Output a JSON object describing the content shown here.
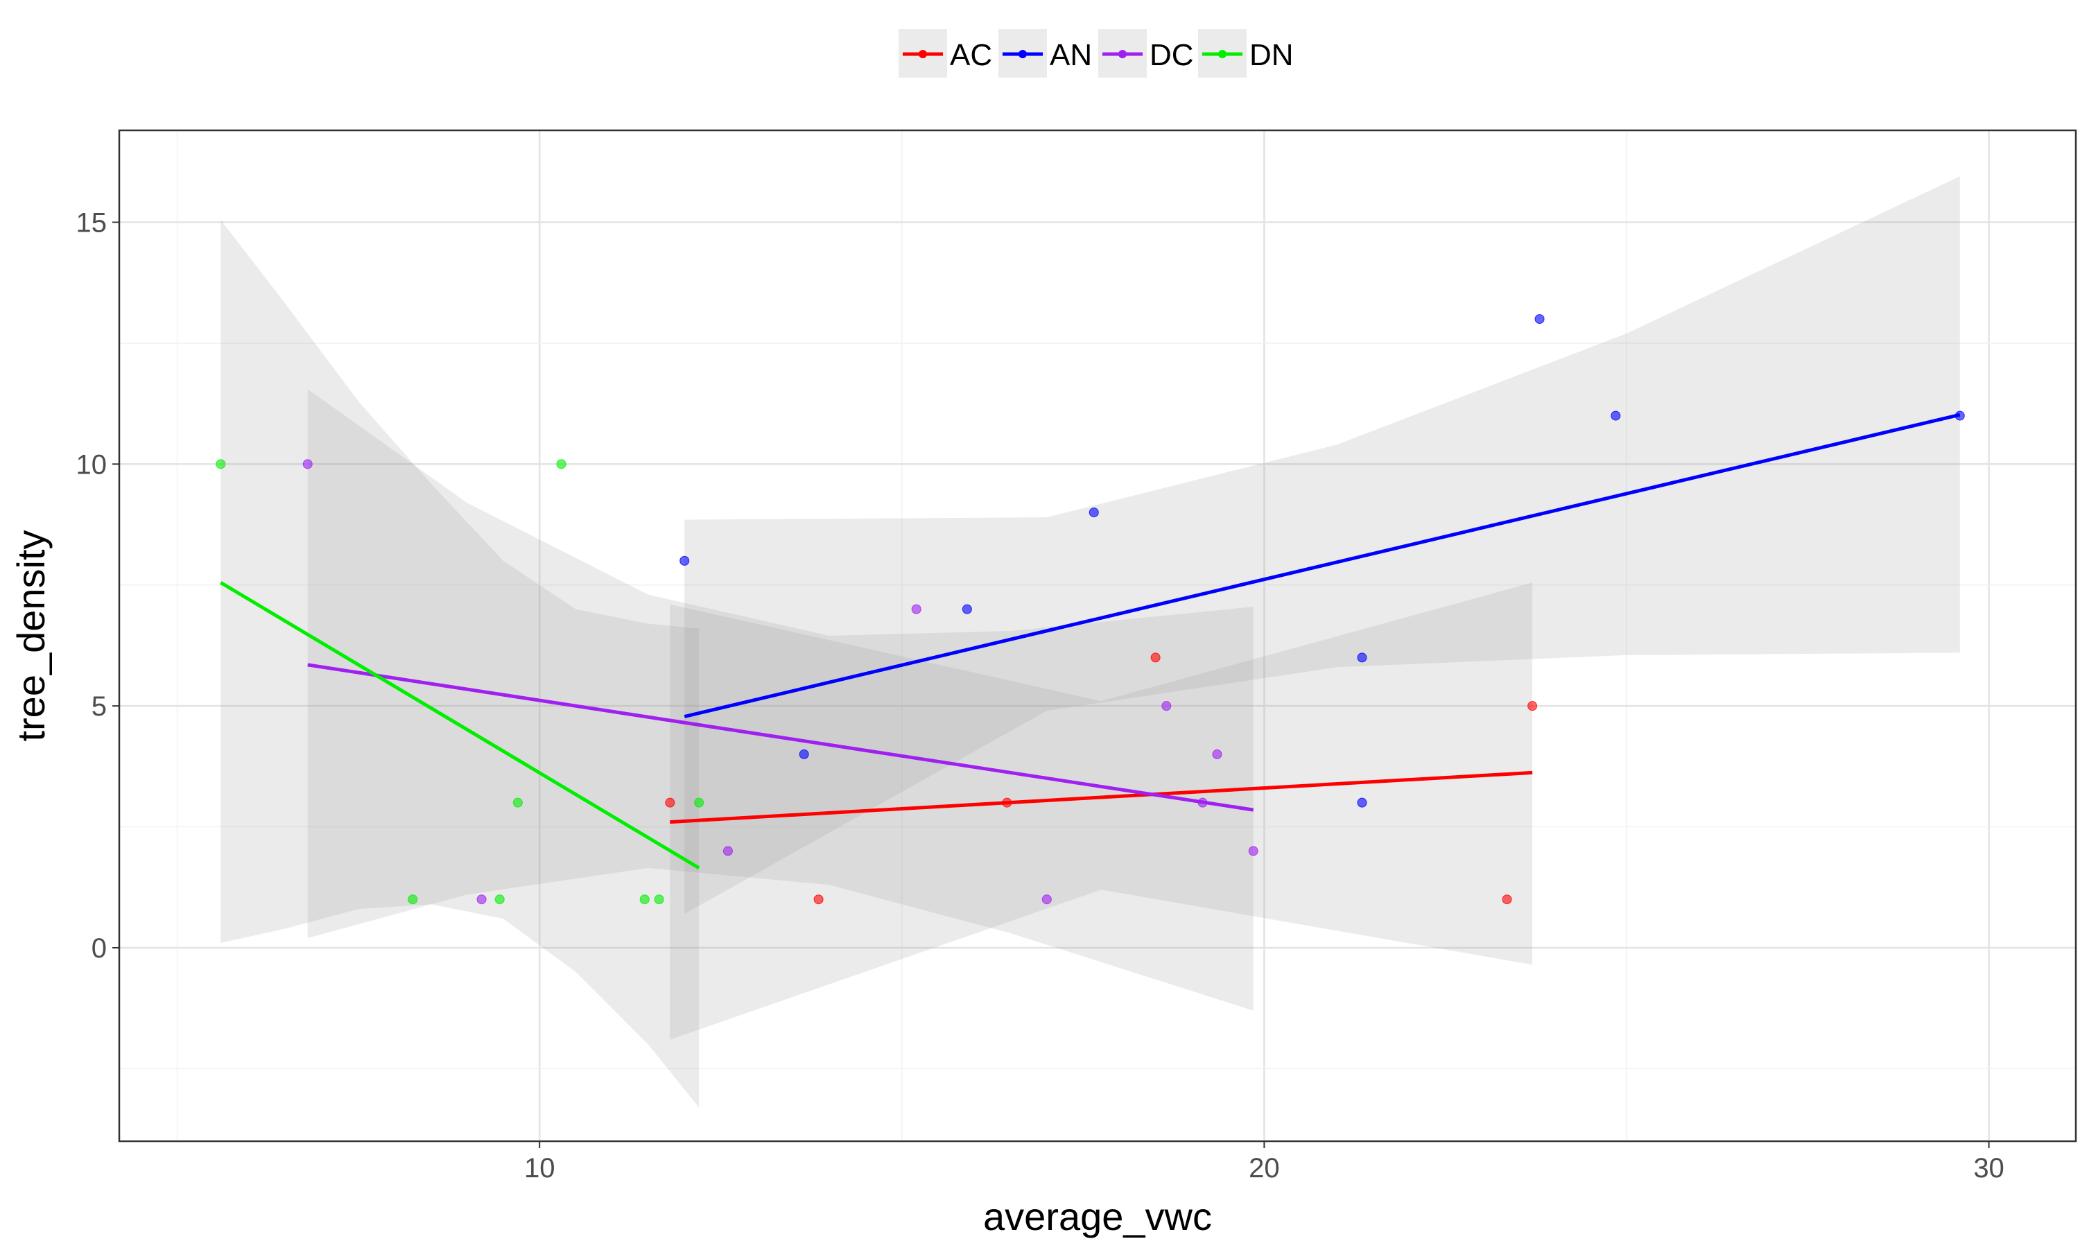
{
  "chart_data": {
    "type": "scatter",
    "title": "",
    "xlabel": "average_vwc",
    "ylabel": "tree_density",
    "xlim": [
      4.2,
      31.2
    ],
    "ylim": [
      -4.0,
      16.9
    ],
    "x_ticks": [
      10,
      20,
      30
    ],
    "y_ticks": [
      0,
      5,
      10,
      15
    ],
    "grid": true,
    "legend_position": "top",
    "series": [
      {
        "name": "AC",
        "color": "#ff0000",
        "points": [
          {
            "x": 11.8,
            "y": 3
          },
          {
            "x": 13.85,
            "y": 1
          },
          {
            "x": 16.45,
            "y": 3
          },
          {
            "x": 18.5,
            "y": 6
          },
          {
            "x": 23.35,
            "y": 1
          },
          {
            "x": 23.7,
            "y": 5
          }
        ],
        "fit": [
          {
            "x": 11.8,
            "y": 2.6
          },
          {
            "x": 23.7,
            "y": 3.62
          }
        ],
        "band_upper": [
          {
            "x": 11.8,
            "y": 7.1
          },
          {
            "x": 17.75,
            "y": 5.1
          },
          {
            "x": 23.7,
            "y": 7.55
          }
        ],
        "band_lower": [
          {
            "x": 11.8,
            "y": -1.9
          },
          {
            "x": 17.75,
            "y": 1.2
          },
          {
            "x": 23.7,
            "y": -0.35
          }
        ]
      },
      {
        "name": "AN",
        "color": "#0000ff",
        "points": [
          {
            "x": 12.0,
            "y": 8
          },
          {
            "x": 13.65,
            "y": 4
          },
          {
            "x": 15.9,
            "y": 7
          },
          {
            "x": 17.65,
            "y": 9
          },
          {
            "x": 21.35,
            "y": 6
          },
          {
            "x": 21.35,
            "y": 3
          },
          {
            "x": 23.8,
            "y": 13
          },
          {
            "x": 24.85,
            "y": 11
          },
          {
            "x": 29.6,
            "y": 11
          }
        ],
        "fit": [
          {
            "x": 12.0,
            "y": 4.78
          },
          {
            "x": 29.6,
            "y": 11.02
          }
        ],
        "band_upper": [
          {
            "x": 12.0,
            "y": 8.85
          },
          {
            "x": 17.0,
            "y": 8.9
          },
          {
            "x": 21.0,
            "y": 10.4
          },
          {
            "x": 25.0,
            "y": 12.7
          },
          {
            "x": 29.6,
            "y": 15.95
          }
        ],
        "band_lower": [
          {
            "x": 12.0,
            "y": 0.7
          },
          {
            "x": 17.0,
            "y": 4.9
          },
          {
            "x": 21.0,
            "y": 5.8
          },
          {
            "x": 25.0,
            "y": 6.05
          },
          {
            "x": 29.6,
            "y": 6.1
          }
        ]
      },
      {
        "name": "DC",
        "color": "#a020f0",
        "points": [
          {
            "x": 6.8,
            "y": 10
          },
          {
            "x": 9.2,
            "y": 1
          },
          {
            "x": 12.6,
            "y": 2
          },
          {
            "x": 15.2,
            "y": 7
          },
          {
            "x": 17.0,
            "y": 1
          },
          {
            "x": 18.65,
            "y": 5
          },
          {
            "x": 19.15,
            "y": 3
          },
          {
            "x": 19.35,
            "y": 4
          },
          {
            "x": 19.85,
            "y": 2
          }
        ],
        "fit": [
          {
            "x": 6.8,
            "y": 5.85
          },
          {
            "x": 19.85,
            "y": 2.85
          }
        ],
        "band_upper": [
          {
            "x": 6.8,
            "y": 11.55
          },
          {
            "x": 9.0,
            "y": 9.2
          },
          {
            "x": 11.5,
            "y": 7.3
          },
          {
            "x": 14.0,
            "y": 6.45
          },
          {
            "x": 16.5,
            "y": 6.55
          },
          {
            "x": 19.85,
            "y": 7.05
          }
        ],
        "band_lower": [
          {
            "x": 6.8,
            "y": 0.2
          },
          {
            "x": 9.0,
            "y": 1.1
          },
          {
            "x": 11.5,
            "y": 1.65
          },
          {
            "x": 14.0,
            "y": 1.3
          },
          {
            "x": 16.5,
            "y": 0.3
          },
          {
            "x": 19.85,
            "y": -1.3
          }
        ]
      },
      {
        "name": "DN",
        "color": "#00ee00",
        "points": [
          {
            "x": 5.6,
            "y": 10
          },
          {
            "x": 8.25,
            "y": 1
          },
          {
            "x": 9.45,
            "y": 1
          },
          {
            "x": 9.7,
            "y": 3
          },
          {
            "x": 10.3,
            "y": 10
          },
          {
            "x": 11.45,
            "y": 1
          },
          {
            "x": 11.65,
            "y": 1
          },
          {
            "x": 12.2,
            "y": 3
          }
        ],
        "fit": [
          {
            "x": 5.6,
            "y": 7.55
          },
          {
            "x": 12.2,
            "y": 1.65
          }
        ],
        "band_upper": [
          {
            "x": 5.6,
            "y": 15.05
          },
          {
            "x": 6.5,
            "y": 13.3
          },
          {
            "x": 7.5,
            "y": 11.3
          },
          {
            "x": 8.5,
            "y": 9.6
          },
          {
            "x": 9.5,
            "y": 8.0
          },
          {
            "x": 10.5,
            "y": 7.0
          },
          {
            "x": 11.5,
            "y": 6.7
          },
          {
            "x": 12.2,
            "y": 6.6
          }
        ],
        "band_lower": [
          {
            "x": 5.6,
            "y": 0.1
          },
          {
            "x": 6.5,
            "y": 0.4
          },
          {
            "x": 7.5,
            "y": 0.8
          },
          {
            "x": 8.5,
            "y": 0.9
          },
          {
            "x": 9.5,
            "y": 0.6
          },
          {
            "x": 10.5,
            "y": -0.5
          },
          {
            "x": 11.5,
            "y": -2.0
          },
          {
            "x": 12.2,
            "y": -3.3
          }
        ]
      }
    ]
  }
}
